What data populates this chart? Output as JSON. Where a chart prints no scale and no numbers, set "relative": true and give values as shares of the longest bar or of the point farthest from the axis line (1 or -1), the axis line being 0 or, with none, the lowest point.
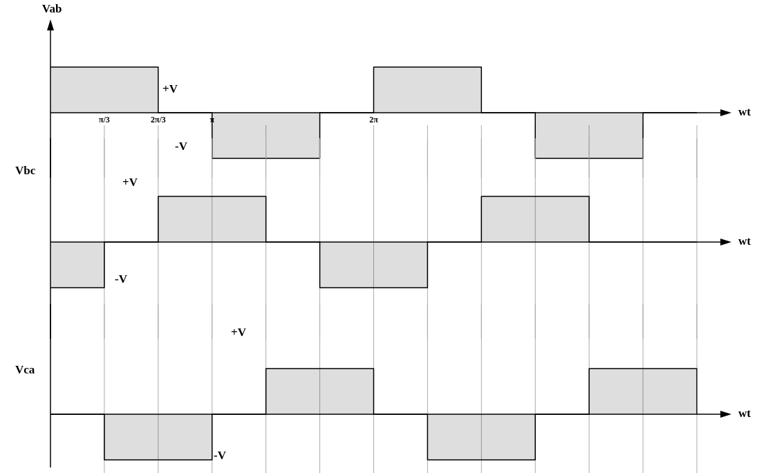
{
  "chart_data": [
    {
      "type": "step",
      "ylabel": "Vab",
      "xlabel": "wt",
      "relative": true,
      "tick_labels": "x",
      "grid": "x",
      "categories": [
        null,
        "π/3",
        "2π/3",
        "π",
        null,
        null,
        "2π",
        null,
        null,
        null,
        null,
        null,
        null
      ],
      "series": [
        {
          "color": "#000000",
          "values": [
            1,
            1,
            0,
            -1,
            -1,
            0,
            1,
            1,
            0,
            -1,
            -1,
            0,
            0
          ]
        }
      ],
      "annotations": [
        "+V",
        "-V"
      ]
    },
    {
      "type": "step",
      "ylabel": "Vbc",
      "xlabel": "wt",
      "relative": true,
      "tick_labels": false,
      "grid": "x",
      "categories": [
        null,
        null,
        null,
        null,
        null,
        null,
        null,
        null,
        null,
        null,
        null,
        null,
        null
      ],
      "series": [
        {
          "color": "#000000",
          "values": [
            -1,
            0,
            1,
            1,
            0,
            -1,
            -1,
            0,
            1,
            1,
            0,
            0,
            0
          ]
        }
      ],
      "annotations": [
        "+V",
        "-V"
      ]
    },
    {
      "type": "step",
      "ylabel": "Vca",
      "xlabel": "wt",
      "relative": true,
      "tick_labels": false,
      "grid": "x",
      "categories": [
        null,
        null,
        null,
        null,
        null,
        null,
        null,
        null,
        null,
        null,
        null,
        null,
        null
      ],
      "series": [
        {
          "color": "#000000",
          "values": [
            0,
            -1,
            -1,
            0,
            1,
            1,
            0,
            -1,
            -1,
            0,
            1,
            1,
            0
          ]
        }
      ],
      "annotations": [
        "+V",
        "-V"
      ]
    }
  ]
}
